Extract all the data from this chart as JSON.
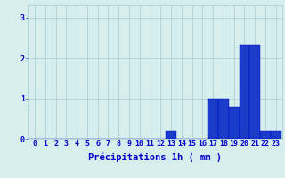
{
  "hours": [
    0,
    1,
    2,
    3,
    4,
    5,
    6,
    7,
    8,
    9,
    10,
    11,
    12,
    13,
    14,
    15,
    16,
    17,
    18,
    19,
    20,
    21,
    22,
    23
  ],
  "values": [
    0,
    0,
    0,
    0,
    0,
    0,
    0,
    0,
    0,
    0,
    0,
    0,
    0,
    0.2,
    0,
    0,
    0,
    1.0,
    1.0,
    0.8,
    2.3,
    2.3,
    0.2,
    0.2
  ],
  "bar_color": "#1a3cc8",
  "bar_edge_color": "#0000cc",
  "background_color": "#d6eeee",
  "grid_color": "#aacccc",
  "text_color": "#0000cc",
  "xlabel": "Précipitations 1h ( mm )",
  "ylim": [
    0,
    3.3
  ],
  "yticks": [
    0,
    1,
    2,
    3
  ],
  "xlim": [
    -0.6,
    23.6
  ],
  "tick_fontsize": 6.0,
  "label_fontsize": 7.5
}
